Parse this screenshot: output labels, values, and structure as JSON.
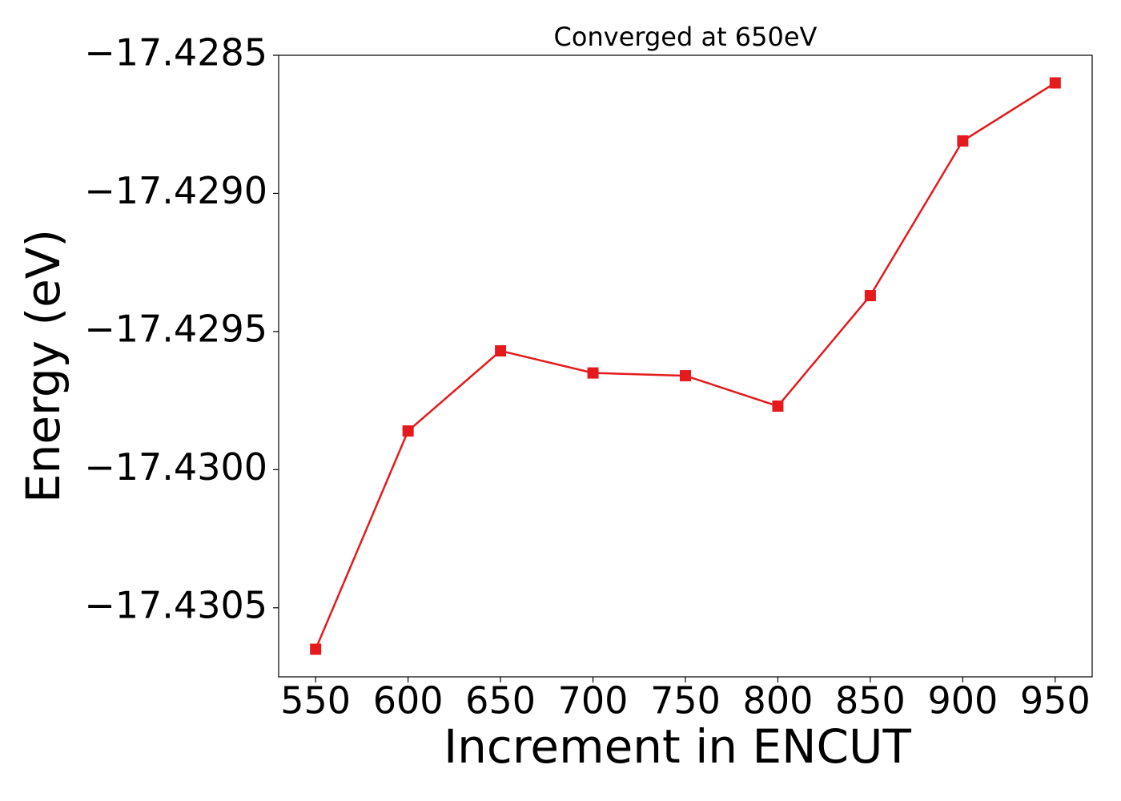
{
  "chart_data": {
    "type": "line",
    "title": "Converged at 650eV",
    "x_label": "Increment in ENCUT",
    "y_label": "Energy (eV)",
    "x": [
      550,
      600,
      650,
      700,
      750,
      800,
      850,
      900,
      950
    ],
    "series": [
      {
        "color": "#e41a1c",
        "marker": "square",
        "values": [
          -17.43065,
          -17.42986,
          -17.42957,
          -17.42965,
          -17.42966,
          -17.42977,
          -17.42937,
          -17.42881,
          -17.4286
        ]
      }
    ],
    "xlim": [
      530,
      970
    ],
    "xticks": [
      550,
      600,
      650,
      700,
      750,
      800,
      850,
      900,
      950
    ],
    "ylim": [
      -17.43075,
      -17.4285
    ],
    "yticks": [
      {
        "value": -17.4305,
        "label": "−17.4305"
      },
      {
        "value": -17.43,
        "label": "−17.4300"
      },
      {
        "value": -17.4295,
        "label": "−17.4295"
      },
      {
        "value": -17.429,
        "label": "−17.4290"
      },
      {
        "value": -17.4285,
        "label": "−17.4285"
      }
    ],
    "grid": false
  }
}
